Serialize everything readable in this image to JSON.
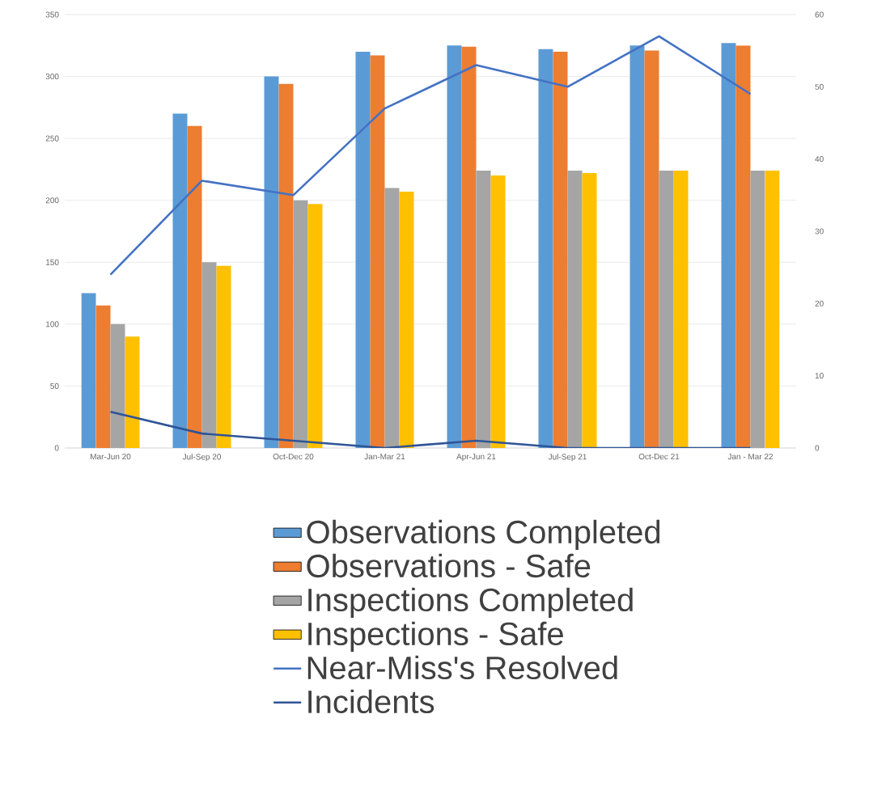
{
  "chart_data": {
    "type": "bar",
    "categories": [
      "Mar-Jun 20",
      "Jul-Sep 20",
      "Oct-Dec 20",
      "Jan-Mar 21",
      "Apr-Jun 21",
      "Jul-Sep 21",
      "Oct-Dec 21",
      "Jan - Mar 22"
    ],
    "series": [
      {
        "name": "Observations Completed",
        "color": "#5b9bd5",
        "values": [
          125,
          270,
          300,
          320,
          325,
          322,
          325,
          327
        ]
      },
      {
        "name": "Observations - Safe",
        "color": "#ed7d31",
        "values": [
          115,
          260,
          294,
          317,
          324,
          320,
          321,
          325
        ]
      },
      {
        "name": "Inspections Completed",
        "color": "#a5a5a5",
        "values": [
          100,
          150,
          200,
          210,
          224,
          224,
          224,
          224
        ]
      },
      {
        "name": "Inspections - Safe",
        "color": "#ffc000",
        "values": [
          90,
          147,
          197,
          207,
          220,
          222,
          224,
          224
        ]
      },
      {
        "name": "Near-Miss's Resolved",
        "type": "line",
        "axis": "y2",
        "color": "#4472c4",
        "values": [
          24,
          37,
          35,
          47,
          53,
          50,
          57,
          49
        ]
      },
      {
        "name": "Incidents",
        "type": "line",
        "axis": "y2",
        "color": "#2f5597",
        "values": [
          5,
          2,
          1,
          0,
          1,
          0,
          0,
          0
        ]
      }
    ],
    "ylim": [
      0,
      350
    ],
    "yticks": [
      0,
      50,
      100,
      150,
      200,
      250,
      300,
      350
    ],
    "y2lim": [
      0,
      60
    ],
    "y2ticks": [
      0,
      10,
      20,
      30,
      40,
      50,
      60
    ],
    "grid": "y",
    "legend": "bottom"
  }
}
